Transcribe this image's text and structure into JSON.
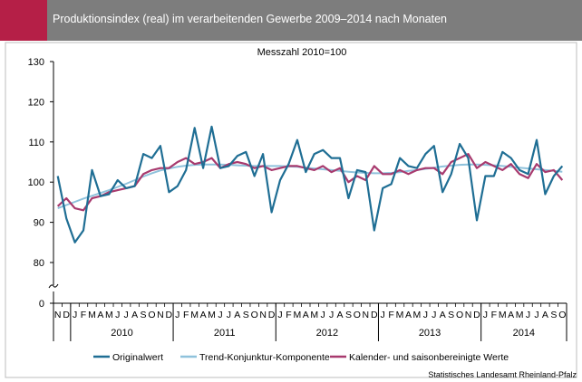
{
  "header": {
    "title": "Produktionsindex (real) im verarbeitenden Gewerbe 2009–2014 nach Monaten",
    "accent_color": "#b51f47",
    "background_color": "#7d7d7d"
  },
  "source": "Statistisches Landesamt Rheinland-Pfalz",
  "chart_data": {
    "type": "line",
    "title": "Messzahl 2010=100",
    "xlabel": "",
    "ylabel": "",
    "ylim": [
      0,
      130
    ],
    "y_axis_break": [
      0,
      80
    ],
    "yticks": [
      0,
      80,
      90,
      100,
      110,
      120,
      130
    ],
    "grid": false,
    "legend_position": "bottom",
    "month_labels": [
      "N",
      "D",
      "J",
      "F",
      "M",
      "A",
      "M",
      "J",
      "J",
      "A",
      "S",
      "O",
      "N",
      "D",
      "J",
      "F",
      "M",
      "A",
      "M",
      "J",
      "J",
      "A",
      "S",
      "O",
      "N",
      "D",
      "J",
      "F",
      "M",
      "A",
      "M",
      "J",
      "J",
      "A",
      "S",
      "O",
      "N",
      "D",
      "J",
      "F",
      "M",
      "A",
      "M",
      "J",
      "J",
      "A",
      "S",
      "O",
      "N",
      "D",
      "J",
      "F",
      "M",
      "A",
      "M",
      "J",
      "J",
      "A",
      "S",
      "O"
    ],
    "year_groups": [
      {
        "label": "2010",
        "start": 2,
        "end": 13
      },
      {
        "label": "2011",
        "start": 14,
        "end": 25
      },
      {
        "label": "2012",
        "start": 26,
        "end": 37
      },
      {
        "label": "2013",
        "start": 38,
        "end": 49
      },
      {
        "label": "2014",
        "start": 50,
        "end": 59
      }
    ],
    "series": [
      {
        "name": "Originalwert",
        "color": "#1f6e94",
        "values": [
          101.5,
          91.0,
          85.0,
          88.0,
          103.0,
          96.5,
          97.0,
          100.5,
          98.5,
          99.0,
          107.0,
          106.0,
          109.0,
          97.5,
          99.0,
          103.0,
          113.5,
          103.5,
          113.8,
          103.5,
          104.0,
          106.5,
          107.5,
          101.5,
          107.0,
          92.5,
          100.5,
          104.5,
          110.5,
          102.5,
          107.0,
          108.0,
          106.0,
          106.0,
          96.0,
          103.0,
          102.5,
          88.0,
          98.5,
          99.5,
          106.0,
          104.0,
          103.5,
          107.0,
          109.0,
          97.5,
          102.0,
          109.5,
          106.0,
          90.5,
          101.5,
          101.5,
          107.5,
          106.0,
          103.0,
          102.0,
          110.5,
          97.0,
          101.5,
          104.0
        ]
      },
      {
        "name": "Trend-Konjunktur-Komponente",
        "color": "#8fc2dc",
        "values": [
          93.5,
          94.3,
          95.1,
          95.9,
          96.6,
          97.3,
          98.0,
          98.8,
          99.6,
          100.5,
          101.4,
          102.2,
          102.9,
          103.4,
          103.8,
          104.1,
          104.3,
          104.4,
          104.4,
          104.4,
          104.3,
          104.2,
          104.1,
          104.0,
          104.0,
          104.0,
          104.0,
          103.9,
          103.8,
          103.6,
          103.4,
          103.2,
          103.0,
          102.8,
          102.6,
          102.4,
          102.3,
          102.2,
          102.2,
          102.3,
          102.5,
          102.8,
          103.0,
          103.3,
          103.6,
          103.9,
          104.1,
          104.3,
          104.4,
          104.4,
          104.3,
          104.2,
          104.0,
          103.8,
          103.6,
          103.4,
          103.2,
          103.0,
          102.8,
          102.6
        ]
      },
      {
        "name": "Kalender- und saisonbereinigte Werte",
        "color": "#a83a6e",
        "values": [
          94.0,
          96.0,
          93.5,
          93.0,
          96.0,
          96.5,
          97.5,
          98.0,
          98.5,
          99.0,
          102.0,
          103.0,
          103.5,
          103.5,
          105.0,
          106.0,
          104.5,
          105.0,
          106.0,
          103.5,
          104.5,
          105.0,
          104.5,
          103.5,
          104.0,
          103.0,
          103.5,
          104.0,
          104.0,
          103.5,
          103.0,
          104.0,
          102.5,
          103.5,
          100.0,
          101.5,
          100.5,
          104.0,
          102.0,
          102.0,
          103.0,
          102.0,
          103.0,
          103.5,
          103.5,
          102.0,
          105.0,
          106.0,
          107.0,
          103.5,
          105.0,
          104.0,
          103.0,
          104.5,
          102.0,
          101.0,
          104.5,
          102.5,
          103.0,
          100.5
        ]
      }
    ]
  }
}
